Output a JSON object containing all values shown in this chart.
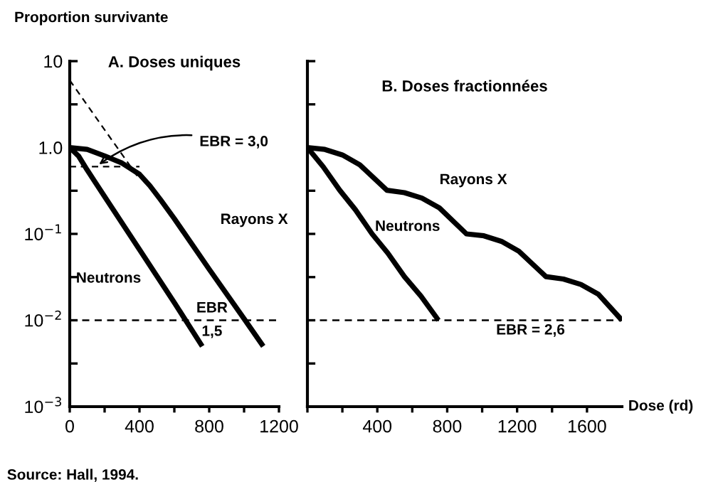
{
  "chart_data": [
    {
      "type": "line",
      "title": "A. Doses uniques",
      "ylabel": "Proportion survivante",
      "log": true,
      "xlim": [
        0,
        1200
      ],
      "xticks": [
        0,
        {
          "value": 200,
          "label": null
        },
        400,
        {
          "value": 600,
          "label": null
        },
        800,
        {
          "value": 1000,
          "label": null
        },
        1200
      ],
      "ylim": [
        0.001,
        10
      ],
      "yticks": [
        {
          "value": 10,
          "label": "10"
        },
        {
          "value": 3.16,
          "label": null
        },
        {
          "value": 1,
          "label": "1.0"
        },
        {
          "value": 0.316,
          "label": null
        },
        {
          "value": 0.1,
          "label": "10$^{−1}$"
        },
        {
          "value": 0.0316,
          "label": null
        },
        {
          "value": 0.01,
          "label": "10$^{−2}$"
        },
        {
          "value": 0.00316,
          "label": null
        },
        {
          "value": 0.001,
          "label": "10$^{−3}$"
        }
      ],
      "grid": false,
      "marker": "none",
      "line_style": "solid",
      "series": [
        {
          "name": "Rayons X",
          "color": "#000000",
          "x": [
            0,
            100,
            200,
            300,
            400,
            460,
            520,
            600,
            800,
            1000,
            1110
          ],
          "values": [
            1.0,
            0.95,
            0.8,
            0.66,
            0.49,
            0.36,
            0.25,
            0.15,
            0.039,
            0.0104,
            0.005
          ]
        },
        {
          "name": "Neutrons",
          "color": "#000000",
          "x": [
            0,
            50,
            100,
            200,
            400,
            600,
            760
          ],
          "values": [
            1.0,
            0.8,
            0.55,
            0.27,
            0.066,
            0.016,
            0.005
          ]
        },
        {
          "color": "#000000",
          "line_style": "dashed",
          "x": [
            0,
            400
          ],
          "values": [
            6,
            0.43
          ]
        },
        {
          "color": "#000000",
          "line_style": "dashed",
          "x": [
            0,
            400
          ],
          "values": [
            0.6,
            0.6
          ]
        }
      ],
      "ref_lines": [
        {
          "axis": "y",
          "value": 0.01,
          "color": "#000000",
          "line_style": "dashed"
        }
      ],
      "annotations": [
        {
          "text": "EBR = 3,0",
          "x": 150,
          "y": 0.6
        },
        "EBR\n1,5",
        "Source: Hall, 1994."
      ]
    },
    {
      "type": "line",
      "title": "B. Doses fractionnées",
      "xlabel": "Dose (rd)",
      "log": true,
      "xlim": [
        0,
        1800
      ],
      "xticks": [
        {
          "value": 0,
          "label": null
        },
        {
          "value": 200,
          "label": null
        },
        400,
        {
          "value": 600,
          "label": null
        },
        800,
        {
          "value": 1000,
          "label": null
        },
        1200,
        {
          "value": 1400,
          "label": null
        },
        1600
      ],
      "ylim": [
        0.001,
        10
      ],
      "tick_labels": "x",
      "grid": false,
      "marker": "none",
      "line_style": "solid",
      "series": [
        {
          "name": "Rayons X",
          "color": "#000000",
          "x": [
            0,
            100,
            200,
            300,
            455,
            555,
            655,
            755,
            910,
            1010,
            1110,
            1210,
            1365,
            1465,
            1565,
            1665,
            1800
          ],
          "values": [
            1.0,
            0.95,
            0.82,
            0.63,
            0.32,
            0.3,
            0.26,
            0.2,
            0.1,
            0.095,
            0.082,
            0.063,
            0.032,
            0.03,
            0.026,
            0.02,
            0.01
          ]
        },
        {
          "name": "Neutrons",
          "color": "#000000",
          "x": [
            0,
            90,
            185,
            275,
            370,
            460,
            555,
            650,
            750
          ],
          "values": [
            1.0,
            0.6,
            0.32,
            0.19,
            0.1,
            0.06,
            0.032,
            0.019,
            0.01
          ]
        }
      ],
      "ref_lines": [
        {
          "axis": "y",
          "value": 0.01,
          "color": "#000000",
          "line_style": "dashed"
        }
      ],
      "annotations": [
        "EBR = 2,6"
      ]
    }
  ]
}
